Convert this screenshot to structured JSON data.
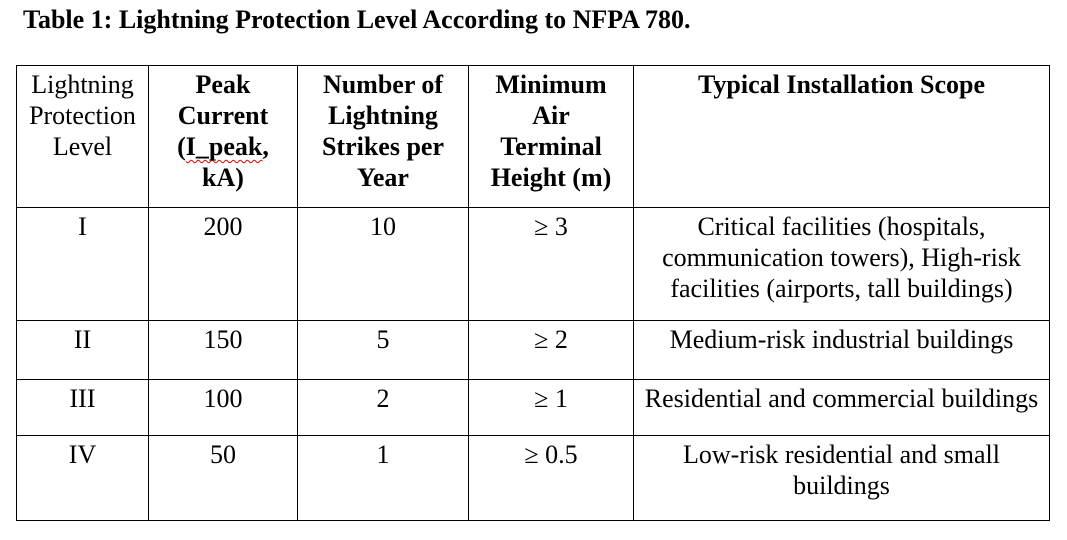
{
  "page": {
    "title": "Table 1: Lightning Protection Level According to NFPA 780."
  },
  "colors": {
    "text": "#000000",
    "border": "#000000",
    "spellcheck_underline": "#e00000"
  },
  "table": {
    "columns": [
      {
        "label": "Lightning\nProtection\nLevel",
        "bold": false
      },
      {
        "pre": "Peak\nCurrent\n(",
        "wavy": "I_peak",
        "post": ",\nkA)",
        "bold": true
      },
      {
        "label": "Number of\nLightning\nStrikes per\nYear",
        "bold": true
      },
      {
        "label": "Minimum\nAir\nTerminal\nHeight (m)",
        "bold": true
      },
      {
        "label": "Typical Installation Scope",
        "bold": true
      }
    ],
    "rows": [
      {
        "cells": [
          "I",
          "200",
          "10",
          "≥ 3",
          "Critical facilities (hospitals,\ncommunication towers), High-risk\nfacilities (airports, tall buildings)"
        ]
      },
      {
        "cells": [
          "II",
          "150",
          "5",
          "≥ 2",
          "Medium-risk industrial buildings"
        ]
      },
      {
        "cells": [
          "III",
          "100",
          "2",
          "≥ 1",
          "Residential and commercial buildings"
        ]
      },
      {
        "cells": [
          "IV",
          "50",
          "1",
          "≥ 0.5",
          "Low-risk residential and small\nbuildings"
        ]
      }
    ]
  }
}
